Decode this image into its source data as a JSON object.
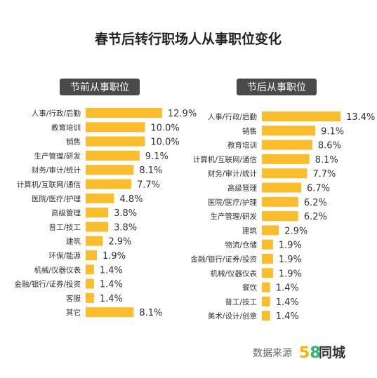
{
  "title": "春节后转行职场人从事职位变化",
  "source": {
    "label": "数据来源",
    "brand_number": "58",
    "brand_text": "同城",
    "brand_colors": {
      "five": "#f7b500",
      "eight": "#2bb673",
      "text": "#333333"
    }
  },
  "colors": {
    "bar": "#fbbd2c",
    "header_bg": "#4a4a4a",
    "header_text": "#ffffff",
    "label_text": "#333333",
    "value_text": "#333333"
  },
  "chart_data": [
    {
      "type": "bar",
      "orientation": "horizontal",
      "title": "节前从事职位",
      "categories": [
        "人事/行政/后勤",
        "教育培训",
        "销售",
        "生产管理/研发",
        "财务/审计/统计",
        "计算机/互联网/通信",
        "医院/医疗/护理",
        "高级管理",
        "普工/技工",
        "建筑",
        "环保/能源",
        "机械/仪器仪表",
        "金融/银行/证券/投资",
        "客服",
        "其它"
      ],
      "values": [
        12.9,
        10.0,
        10.0,
        9.1,
        8.1,
        7.7,
        4.8,
        3.8,
        3.8,
        2.9,
        1.9,
        1.4,
        1.4,
        1.4,
        8.1
      ],
      "value_labels": [
        "12.9%",
        "10.0%",
        "10.0%",
        "9.1%",
        "8.1%",
        "7.7%",
        "4.8%",
        "3.8%",
        "3.8%",
        "2.9%",
        "1.9%",
        "1.4%",
        "1.4%",
        "1.4%",
        "8.1%"
      ],
      "unit": "%"
    },
    {
      "type": "bar",
      "orientation": "horizontal",
      "title": "节后从事职位",
      "categories": [
        "人事/行政/后勤",
        "销售",
        "教育培训",
        "计算机/互联网/通信",
        "财务/审计/统计",
        "高级管理",
        "医院/医疗/护理",
        "生产管理/研发",
        "建筑",
        "物流/仓储",
        "金融/银行/证券/投资",
        "机械/仪器仪表",
        "餐饮",
        "普工/技工",
        "美术/设计/创意"
      ],
      "values": [
        13.4,
        9.1,
        8.6,
        8.1,
        7.7,
        6.7,
        6.2,
        6.2,
        2.9,
        1.9,
        1.9,
        1.9,
        1.4,
        1.4,
        1.4
      ],
      "value_labels": [
        "13.4%",
        "9.1%",
        "8.6%",
        "8.1%",
        "7.7%",
        "6.7%",
        "6.2%",
        "6.2%",
        "2.9%",
        "1.9%",
        "1.9%",
        "1.9%",
        "1.4%",
        "1.4%",
        "1.4%"
      ],
      "unit": "%"
    }
  ]
}
